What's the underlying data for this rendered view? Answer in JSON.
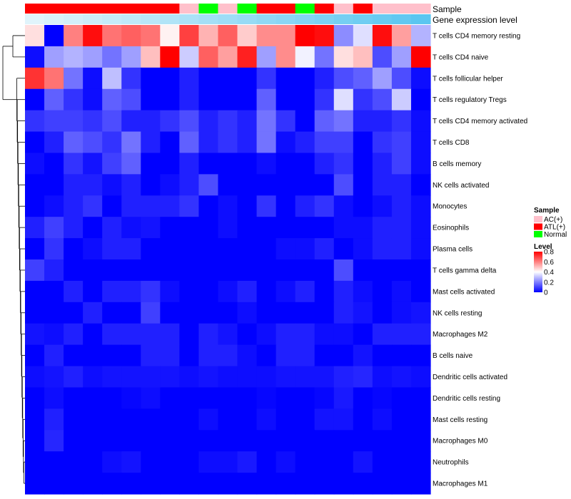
{
  "chart_data": {
    "type": "heatmap",
    "title": "",
    "annotation_labels": {
      "sample": "Sample",
      "gene_level": "Gene expression level"
    },
    "rows": [
      "T cells CD4 memory resting",
      "T cells CD4 naive",
      "T cells follicular helper",
      "T cells regulatory  Tregs",
      "T cells CD4 memory activated",
      "T cells CD8",
      "B cells memory",
      "NK cells activated",
      "Monocytes",
      "Eosinophils",
      "Plasma cells",
      "T cells gamma delta",
      "Mast cells activated",
      "NK cells resting",
      "Macrophages M2",
      "B cells naive",
      "Dendritic cells activated",
      "Dendritic cells resting",
      "Mast cells resting",
      "Macrophages M0",
      "Neutrophils",
      "Macrophages M1"
    ],
    "sample_groups": [
      "ATL(+)",
      "ATL(+)",
      "ATL(+)",
      "ATL(+)",
      "ATL(+)",
      "ATL(+)",
      "ATL(+)",
      "ATL(+)",
      "AC(+)",
      "Normal",
      "AC(+)",
      "Normal",
      "ATL(+)",
      "ATL(+)",
      "Normal",
      "ATL(+)",
      "AC(+)",
      "ATL(+)",
      "AC(+)",
      "AC(+)",
      "AC(+)"
    ],
    "gene_expression_level": [
      0.0,
      0.05,
      0.1,
      0.15,
      0.2,
      0.25,
      0.3,
      0.35,
      0.4,
      0.45,
      0.5,
      0.55,
      0.6,
      0.65,
      0.7,
      0.75,
      0.8,
      0.85,
      0.9,
      0.95,
      1.0
    ],
    "values": [
      [
        0.45,
        0.0,
        0.6,
        0.78,
        0.62,
        0.65,
        0.62,
        0.42,
        0.7,
        0.52,
        0.65,
        0.48,
        0.58,
        0.58,
        0.8,
        0.78,
        0.22,
        0.35,
        0.78,
        0.55,
        0.28
      ],
      [
        0.02,
        0.25,
        0.28,
        0.25,
        0.18,
        0.25,
        0.5,
        0.8,
        0.32,
        0.65,
        0.55,
        0.75,
        0.25,
        0.58,
        0.38,
        0.18,
        0.45,
        0.5,
        0.12,
        0.25,
        0.8
      ],
      [
        0.72,
        0.62,
        0.18,
        0.02,
        0.3,
        0.08,
        0.0,
        0.0,
        0.05,
        0.0,
        0.0,
        0.0,
        0.08,
        0.0,
        0.0,
        0.05,
        0.12,
        0.15,
        0.25,
        0.12,
        0.02
      ],
      [
        0.0,
        0.15,
        0.08,
        0.02,
        0.15,
        0.12,
        0.0,
        0.0,
        0.05,
        0.0,
        0.0,
        0.0,
        0.15,
        0.0,
        0.0,
        0.08,
        0.35,
        0.08,
        0.12,
        0.32,
        0.0
      ],
      [
        0.08,
        0.1,
        0.1,
        0.08,
        0.12,
        0.05,
        0.05,
        0.08,
        0.12,
        0.05,
        0.08,
        0.05,
        0.18,
        0.08,
        0.0,
        0.15,
        0.18,
        0.05,
        0.05,
        0.08,
        0.02
      ],
      [
        0.0,
        0.05,
        0.15,
        0.12,
        0.08,
        0.18,
        0.05,
        0.0,
        0.15,
        0.05,
        0.08,
        0.05,
        0.18,
        0.02,
        0.05,
        0.1,
        0.1,
        0.0,
        0.08,
        0.1,
        0.02
      ],
      [
        0.02,
        0.0,
        0.08,
        0.03,
        0.1,
        0.15,
        0.0,
        0.0,
        0.05,
        0.0,
        0.0,
        0.0,
        0.02,
        0.0,
        0.0,
        0.05,
        0.08,
        0.0,
        0.05,
        0.1,
        0.02
      ],
      [
        0.0,
        0.0,
        0.05,
        0.05,
        0.02,
        0.05,
        0.0,
        0.02,
        0.05,
        0.12,
        0.0,
        0.0,
        0.0,
        0.0,
        0.0,
        0.0,
        0.12,
        0.0,
        0.05,
        0.05,
        0.0
      ],
      [
        0.0,
        0.02,
        0.05,
        0.08,
        0.0,
        0.05,
        0.05,
        0.05,
        0.08,
        0.0,
        0.02,
        0.0,
        0.08,
        0.0,
        0.05,
        0.08,
        0.02,
        0.0,
        0.02,
        0.05,
        0.02
      ],
      [
        0.05,
        0.1,
        0.05,
        0.0,
        0.05,
        0.02,
        0.03,
        0.0,
        0.0,
        0.0,
        0.02,
        0.0,
        0.0,
        0.0,
        0.0,
        0.0,
        0.02,
        0.02,
        0.05,
        0.05,
        0.02
      ],
      [
        0.0,
        0.08,
        0.0,
        0.02,
        0.05,
        0.05,
        0.0,
        0.0,
        0.0,
        0.0,
        0.0,
        0.0,
        0.0,
        0.02,
        0.02,
        0.05,
        0.0,
        0.02,
        0.05,
        0.05,
        0.02
      ],
      [
        0.1,
        0.05,
        0.0,
        0.0,
        0.0,
        0.0,
        0.0,
        0.0,
        0.0,
        0.0,
        0.0,
        0.0,
        0.0,
        0.0,
        0.0,
        0.0,
        0.12,
        0.0,
        0.0,
        0.0,
        0.0
      ],
      [
        0.0,
        0.0,
        0.05,
        0.0,
        0.05,
        0.05,
        0.08,
        0.02,
        0.0,
        0.0,
        0.02,
        0.05,
        0.0,
        0.02,
        0.05,
        0.0,
        0.05,
        0.02,
        0.0,
        0.02,
        0.0
      ],
      [
        0.0,
        0.0,
        0.0,
        0.05,
        0.0,
        0.0,
        0.1,
        0.0,
        0.0,
        0.0,
        0.0,
        0.02,
        0.0,
        0.0,
        0.0,
        0.0,
        0.05,
        0.03,
        0.0,
        0.02,
        0.03
      ],
      [
        0.03,
        0.02,
        0.05,
        0.0,
        0.05,
        0.05,
        0.05,
        0.05,
        0.0,
        0.05,
        0.03,
        0.0,
        0.02,
        0.05,
        0.05,
        0.02,
        0.02,
        0.0,
        0.05,
        0.05,
        0.05
      ],
      [
        0.0,
        0.05,
        0.0,
        0.0,
        0.0,
        0.0,
        0.05,
        0.05,
        0.0,
        0.05,
        0.05,
        0.02,
        0.0,
        0.05,
        0.05,
        0.0,
        0.0,
        0.03,
        0.0,
        0.0,
        0.0
      ],
      [
        0.02,
        0.03,
        0.05,
        0.02,
        0.03,
        0.03,
        0.03,
        0.03,
        0.02,
        0.03,
        0.02,
        0.02,
        0.02,
        0.03,
        0.03,
        0.03,
        0.05,
        0.06,
        0.02,
        0.03,
        0.02
      ],
      [
        0.0,
        0.02,
        0.0,
        0.0,
        0.0,
        0.01,
        0.02,
        0.0,
        0.0,
        0.0,
        0.0,
        0.0,
        0.01,
        0.0,
        0.0,
        0.01,
        0.04,
        0.0,
        0.01,
        0.0,
        0.0
      ],
      [
        0.0,
        0.05,
        0.0,
        0.0,
        0.0,
        0.0,
        0.0,
        0.0,
        0.0,
        0.02,
        0.0,
        0.0,
        0.02,
        0.0,
        0.0,
        0.03,
        0.03,
        0.0,
        0.02,
        0.0,
        0.0
      ],
      [
        0.0,
        0.06,
        0.0,
        0.0,
        0.0,
        0.0,
        0.0,
        0.0,
        0.0,
        0.0,
        0.0,
        0.0,
        0.0,
        0.0,
        0.0,
        0.0,
        0.0,
        0.0,
        0.0,
        0.0,
        0.0
      ],
      [
        0.0,
        0.0,
        0.0,
        0.0,
        0.02,
        0.03,
        0.0,
        0.0,
        0.0,
        0.02,
        0.02,
        0.04,
        0.0,
        0.02,
        0.0,
        0.0,
        0.0,
        0.03,
        0.0,
        0.0,
        0.0
      ],
      [
        0.0,
        0.0,
        0.0,
        0.0,
        0.0,
        0.0,
        0.0,
        0.0,
        0.0,
        0.0,
        0.0,
        0.0,
        0.0,
        0.0,
        0.0,
        0.0,
        0.0,
        0.0,
        0.0,
        0.0,
        0.0
      ]
    ],
    "legend": {
      "sample_title": "Sample",
      "sample_entries": [
        {
          "label": "AC(+)",
          "color": "#ffc0cb"
        },
        {
          "label": "ATL(+)",
          "color": "#ff0000"
        },
        {
          "label": "Normal",
          "color": "#00ff00"
        }
      ],
      "level_title": "Level",
      "level_ticks": [
        "0.8",
        "0.6",
        "0.4",
        "0.2",
        "0"
      ],
      "level_tick_values": [
        0.8,
        0.6,
        0.4,
        0.2,
        0.0
      ],
      "level_range": [
        0,
        0.8
      ]
    },
    "colors": {
      "low": "#0000ff",
      "mid": "#ffffff",
      "high": "#ff0000",
      "gene_low": "#e0f4fb",
      "gene_high": "#5bc6f0"
    },
    "dendrogram": true
  }
}
